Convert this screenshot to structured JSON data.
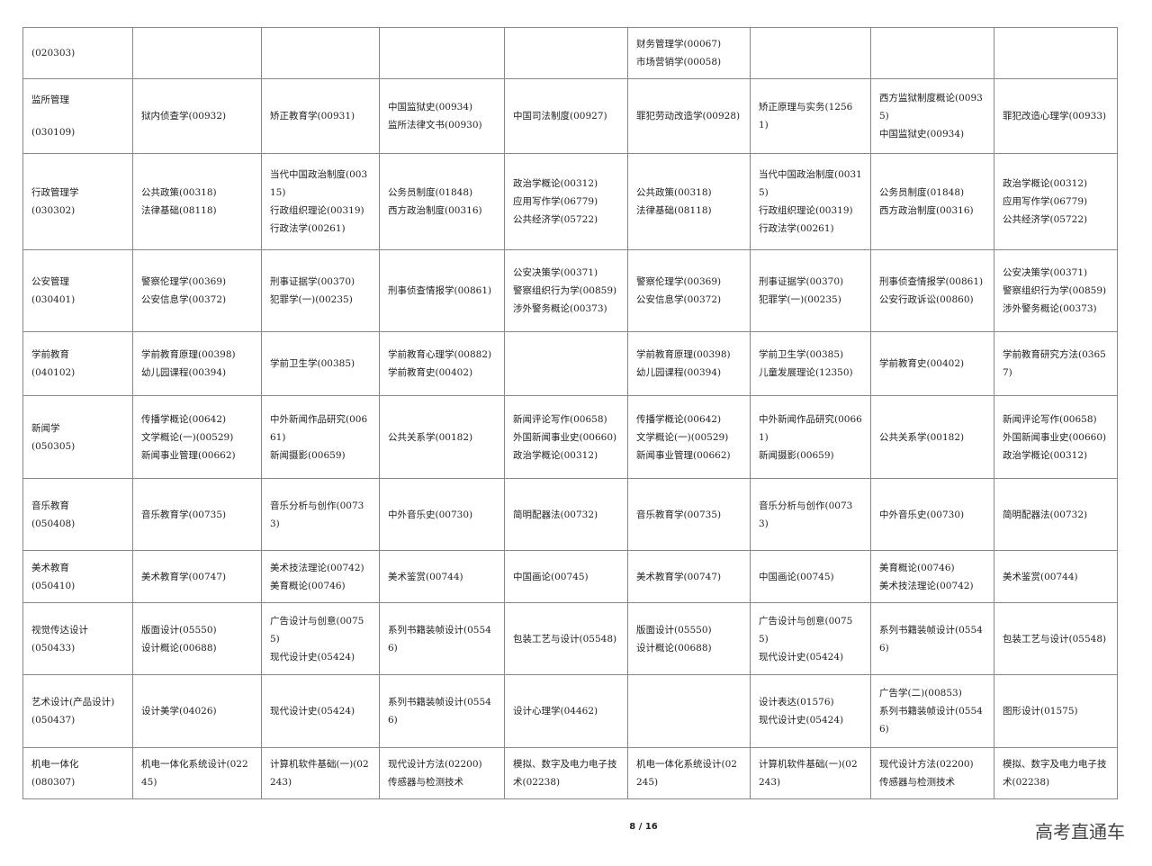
{
  "rows": [
    {
      "name": "",
      "code": "(020303)",
      "cells": [
        [],
        [],
        [],
        [],
        [
          "财务管理学(00067)",
          "市场营销学(00058)"
        ],
        [],
        [],
        []
      ]
    },
    {
      "name": "监所管理",
      "code": "(030109)",
      "cells": [
        [
          "狱内侦查学(00932)"
        ],
        [
          "矫正教育学(00931)"
        ],
        [
          "中国监狱史(00934)",
          "监所法律文书(00930)"
        ],
        [
          "中国司法制度(00927)"
        ],
        [
          "罪犯劳动改造学(00928)"
        ],
        [
          "矫正原理与实务(12561)"
        ],
        [
          "西方监狱制度概论(00935)",
          "中国监狱史(00934)"
        ],
        [
          "罪犯改造心理学(00933)"
        ]
      ]
    },
    {
      "name": "行政管理学",
      "code": "(030302)",
      "cells": [
        [
          "公共政策(00318)",
          "法律基础(08118)"
        ],
        [
          "当代中国政治制度(00315)",
          "行政组织理论(00319)",
          "行政法学(00261)"
        ],
        [
          "公务员制度(01848)",
          "西方政治制度(00316)"
        ],
        [
          "政治学概论(00312)",
          "应用写作学(06779)",
          "公共经济学(05722)"
        ],
        [
          "公共政策(00318)",
          "法律基础(08118)"
        ],
        [
          "当代中国政治制度(00315)",
          "行政组织理论(00319)",
          "行政法学(00261)"
        ],
        [
          "公务员制度(01848)",
          "西方政治制度(00316)"
        ],
        [
          "政治学概论(00312)",
          "应用写作学(06779)",
          "公共经济学(05722)"
        ]
      ]
    },
    {
      "name": "公安管理",
      "code": "(030401)",
      "cells": [
        [
          "警察伦理学(00369)",
          "公安信息学(00372)"
        ],
        [
          "刑事证据学(00370)",
          "犯罪学(一)(00235)"
        ],
        [
          "刑事侦查情报学(00861)"
        ],
        [
          "公安决策学(00371)",
          "警察组织行为学(00859)",
          "涉外警务概论(00373)"
        ],
        [
          "警察伦理学(00369)",
          "公安信息学(00372)"
        ],
        [
          "刑事证据学(00370)",
          "犯罪学(一)(00235)"
        ],
        [
          "刑事侦查情报学(00861)",
          "公安行政诉讼(00860)"
        ],
        [
          "公安决策学(00371)",
          "警察组织行为学(00859)",
          "涉外警务概论(00373)"
        ]
      ]
    },
    {
      "name": "学前教育",
      "code": "(040102)",
      "cells": [
        [
          "学前教育原理(00398)",
          "幼儿园课程(00394)"
        ],
        [
          "学前卫生学(00385)"
        ],
        [
          "学前教育心理学(00882)",
          "学前教育史(00402)"
        ],
        [],
        [
          "学前教育原理(00398)",
          "幼儿园课程(00394)"
        ],
        [
          "学前卫生学(00385)",
          "儿童发展理论(12350)"
        ],
        [
          "学前教育史(00402)"
        ],
        [
          "学前教育研究方法(03657)"
        ]
      ]
    },
    {
      "name": "新闻学",
      "code": "(050305)",
      "cells": [
        [
          "传播学概论(00642)",
          "文学概论(一)(00529)",
          "新闻事业管理(00662)"
        ],
        [
          "中外新闻作品研究(00661)",
          "新闻摄影(00659)"
        ],
        [
          "公共关系学(00182)"
        ],
        [
          "新闻评论写作(00658)",
          "外国新闻事业史(00660)",
          "政治学概论(00312)"
        ],
        [
          "传播学概论(00642)",
          "文学概论(一)(00529)",
          "新闻事业管理(00662)"
        ],
        [
          "中外新闻作品研究(00661)",
          "新闻摄影(00659)"
        ],
        [
          "公共关系学(00182)"
        ],
        [
          "新闻评论写作(00658)",
          "外国新闻事业史(00660)",
          "政治学概论(00312)"
        ]
      ]
    },
    {
      "name": "音乐教育",
      "code": "(050408)",
      "cells": [
        [
          "音乐教育学(00735)"
        ],
        [
          "音乐分析与创作(00733)"
        ],
        [
          "中外音乐史(00730)"
        ],
        [
          "简明配器法(00732)"
        ],
        [
          "音乐教育学(00735)"
        ],
        [
          "音乐分析与创作(00733)"
        ],
        [
          "中外音乐史(00730)"
        ],
        [
          "简明配器法(00732)"
        ]
      ]
    },
    {
      "name": "美术教育",
      "code": "(050410)",
      "cells": [
        [
          "美术教育学(00747)"
        ],
        [
          "美术技法理论(00742)",
          "美育概论(00746)"
        ],
        [
          "美术鉴赏(00744)"
        ],
        [
          "中国画论(00745)"
        ],
        [
          "美术教育学(00747)"
        ],
        [
          "中国画论(00745)"
        ],
        [
          "美育概论(00746)",
          "美术技法理论(00742)"
        ],
        [
          "美术鉴赏(00744)"
        ]
      ]
    },
    {
      "name": "视觉传达设计",
      "code": "(050433)",
      "cells": [
        [
          "版面设计(05550)",
          "设计概论(00688)"
        ],
        [
          "广告设计与创意(00755)",
          "现代设计史(05424)"
        ],
        [
          "系列书籍装帧设计(05546)"
        ],
        [
          "包装工艺与设计(05548)"
        ],
        [
          "版面设计(05550)",
          "设计概论(00688)"
        ],
        [
          "广告设计与创意(00755)",
          "现代设计史(05424)"
        ],
        [
          "系列书籍装帧设计(05546)"
        ],
        [
          "包装工艺与设计(05548)"
        ]
      ]
    },
    {
      "name": "艺术设计(产品设计)",
      "code": "(050437)",
      "cells": [
        [
          "设计美学(04026)"
        ],
        [
          "现代设计史(05424)"
        ],
        [
          "系列书籍装帧设计(05546)"
        ],
        [
          "设计心理学(04462)"
        ],
        [],
        [
          "设计表达(01576)",
          "现代设计史(05424)"
        ],
        [
          "广告学(二)(00853)",
          "系列书籍装帧设计(05546)"
        ],
        [
          "图形设计(01575)"
        ]
      ]
    },
    {
      "name": "机电一体化",
      "code": "(080307)",
      "cells": [
        [
          "机电一体化系统设计(02245)"
        ],
        [
          "计算机软件基础(一)(02243)"
        ],
        [
          "现代设计方法(02200)",
          "传感器与检测技术"
        ],
        [
          "模拟、数字及电力电子技术(02238)"
        ],
        [
          "机电一体化系统设计(02245)"
        ],
        [
          "计算机软件基础(一)(02243)"
        ],
        [
          "现代设计方法(02200)",
          "传感器与检测技术"
        ],
        [
          "模拟、数字及电力电子技术(02238)"
        ]
      ]
    }
  ],
  "footer": {
    "page": "8 / 16",
    "watermark": "高考直通车"
  }
}
